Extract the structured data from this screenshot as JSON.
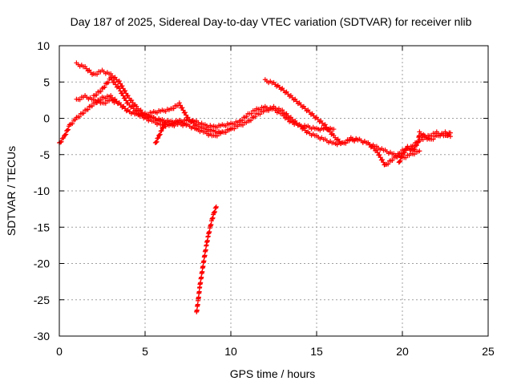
{
  "chart_data": {
    "type": "scatter",
    "title": "Day 187 of 2025, Sidereal Day-to-day VTEC variation (SDTVAR) for receiver nlib",
    "xlabel": "GPS time / hours",
    "ylabel": "SDTVAR / TECUs",
    "xlim": [
      0,
      25
    ],
    "ylim": [
      -30,
      10
    ],
    "x_ticks": [
      0,
      5,
      10,
      15,
      20,
      25
    ],
    "y_ticks": [
      10,
      5,
      0,
      -5,
      -10,
      -15,
      -20,
      -25,
      -30
    ],
    "x_tick_labels": [
      "0",
      "5",
      "10",
      "15",
      "20",
      "25"
    ],
    "y_tick_labels": [
      "10",
      "5",
      "0",
      "-5",
      "-10",
      "-15",
      "-20",
      "-25",
      "-30"
    ],
    "grid": true,
    "marker": "+",
    "color": "#ff0000",
    "series": [
      {
        "name": "track-a",
        "x": [
          0.0,
          0.3,
          0.6,
          1.0,
          1.5,
          2.0,
          2.5,
          3.0,
          3.5,
          4.0,
          4.5,
          5.0,
          5.5,
          6.0,
          6.5,
          7.0,
          7.5,
          8.0,
          8.5,
          9.0,
          9.5,
          10.0,
          10.5,
          11.0,
          11.5,
          12.0,
          12.5,
          13.0,
          13.5,
          14.0,
          14.5,
          15.0,
          15.5,
          16.0
        ],
        "y": [
          -3.5,
          -2.5,
          -1.0,
          0.0,
          1.0,
          2.0,
          2.8,
          3.0,
          2.0,
          1.0,
          0.5,
          0.3,
          0.0,
          -0.3,
          -0.5,
          -0.4,
          -0.3,
          -0.5,
          -1.0,
          -1.2,
          -1.0,
          -0.8,
          -0.5,
          0.5,
          1.2,
          1.5,
          1.2,
          0.5,
          -0.5,
          -1.0,
          -1.2,
          -1.5,
          -1.5,
          -1.5
        ]
      },
      {
        "name": "track-b",
        "x": [
          1.0,
          1.5,
          2.0,
          2.5,
          3.0,
          3.5,
          4.0,
          4.5,
          5.0,
          5.5,
          6.0,
          6.5,
          7.0,
          7.5,
          8.0,
          8.5,
          9.0,
          9.5,
          10.0,
          10.5,
          11.0,
          11.5,
          12.0,
          12.5,
          13.0,
          13.5,
          14.0,
          14.5,
          15.0,
          15.5,
          16.0,
          16.5,
          17.0,
          17.5,
          18.0,
          18.5,
          19.0,
          19.5,
          20.0,
          20.5,
          21.0
        ],
        "y": [
          2.5,
          3.0,
          2.5,
          2.0,
          2.5,
          2.0,
          1.0,
          0.5,
          0.5,
          0.8,
          1.0,
          1.2,
          2.0,
          0.0,
          -1.0,
          -1.5,
          -1.8,
          -2.0,
          -1.5,
          -1.0,
          -0.5,
          0.5,
          1.0,
          1.5,
          1.0,
          0.0,
          -1.0,
          -2.0,
          -2.5,
          -3.0,
          -3.5,
          -3.5,
          -3.0,
          -3.0,
          -3.5,
          -4.0,
          -4.5,
          -5.0,
          -5.5,
          -5.0,
          -4.5
        ]
      },
      {
        "name": "track-c",
        "x": [
          1.0,
          1.5,
          2.0,
          2.5,
          3.0,
          3.5,
          4.0,
          4.5,
          5.0,
          5.5,
          6.0,
          6.5,
          7.0,
          7.5,
          8.0
        ],
        "y": [
          7.5,
          7.0,
          6.0,
          6.5,
          6.0,
          5.0,
          3.0,
          1.5,
          0.5,
          0.0,
          -0.5,
          -0.8,
          -0.5,
          -1.0,
          -1.5
        ]
      },
      {
        "name": "track-d",
        "x": [
          2.0,
          2.5,
          3.0,
          3.5,
          4.0,
          4.5,
          5.0,
          5.5,
          6.0,
          6.5,
          7.0,
          7.5,
          8.0,
          8.5,
          9.0,
          9.5,
          10.0
        ],
        "y": [
          3.0,
          4.0,
          5.5,
          4.0,
          2.0,
          1.0,
          0.0,
          -0.5,
          -1.0,
          -1.0,
          -0.8,
          -1.0,
          -1.5,
          -2.0,
          -2.5,
          -2.0,
          -1.5
        ]
      },
      {
        "name": "track-e",
        "x": [
          12.0,
          12.5,
          13.0,
          13.5,
          14.0,
          14.5,
          15.0,
          15.5,
          16.0,
          16.5,
          17.0,
          17.5,
          18.0,
          18.5,
          19.0,
          19.5,
          20.0,
          20.5,
          21.0,
          21.5,
          22.0,
          22.5,
          22.8
        ],
        "y": [
          5.2,
          4.8,
          4.0,
          3.0,
          2.0,
          1.0,
          0.0,
          -1.0,
          -2.5,
          -3.5,
          -2.8,
          -3.0,
          -3.5,
          -4.5,
          -6.5,
          -5.5,
          -4.5,
          -4.0,
          -3.0,
          -2.5,
          -2.0,
          -2.5,
          -2.0
        ]
      },
      {
        "name": "track-f",
        "x": [
          5.6,
          5.8,
          6.0,
          6.2
        ],
        "y": [
          -3.5,
          -2.5,
          -1.5,
          -0.5
        ]
      },
      {
        "name": "track-g",
        "x": [
          19.8,
          20.0,
          20.3,
          20.6,
          20.9,
          21.0,
          21.3,
          21.6,
          22.0,
          22.5,
          22.8
        ],
        "y": [
          -6.2,
          -5.0,
          -4.0,
          -4.5,
          -3.5,
          -2.0,
          -2.5,
          -3.0,
          -2.5,
          -2.0,
          -2.5
        ]
      },
      {
        "name": "track-h",
        "x": [
          8.0,
          8.1,
          8.2,
          8.3,
          8.4,
          8.5,
          8.6,
          8.7,
          8.8,
          8.9,
          9.0,
          9.1,
          9.15
        ],
        "y": [
          -26.8,
          -25.0,
          -23.0,
          -21.5,
          -20.0,
          -18.5,
          -17.2,
          -16.0,
          -15.0,
          -14.0,
          -13.2,
          -12.5,
          -12.2
        ]
      }
    ]
  }
}
